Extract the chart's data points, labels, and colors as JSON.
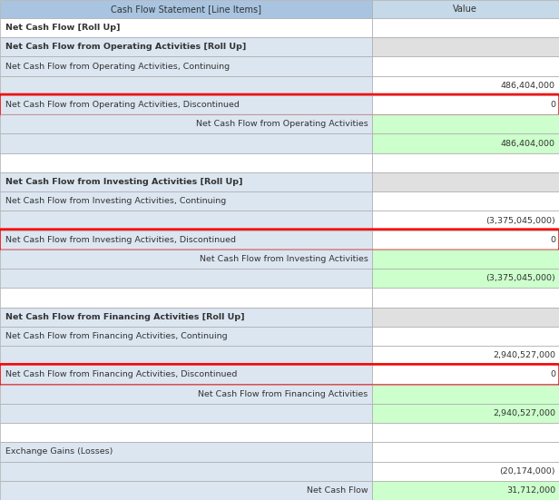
{
  "header": [
    "Cash Flow Statement [Line Items]",
    "Value"
  ],
  "rows": [
    {
      "label": "Net Cash Flow [Roll Up]",
      "value": "",
      "style": "bold",
      "right_label": false,
      "row_bg": "white",
      "value_bg": "white",
      "highlight": false
    },
    {
      "label": "Net Cash Flow from Operating Activities [Roll Up]",
      "value": "",
      "style": "bold",
      "right_label": false,
      "row_bg": "light_blue",
      "value_bg": "light_gray",
      "highlight": false
    },
    {
      "label": "Net Cash Flow from Operating Activities, Continuing",
      "value": "",
      "style": "normal",
      "right_label": false,
      "row_bg": "light_blue",
      "value_bg": "white",
      "highlight": false
    },
    {
      "label": "",
      "value": "486,404,000",
      "style": "normal",
      "right_label": false,
      "row_bg": "light_blue",
      "value_bg": "white",
      "highlight": false
    },
    {
      "label": "Net Cash Flow from Operating Activities, Discontinued",
      "value": "0",
      "style": "normal",
      "right_label": false,
      "row_bg": "light_blue",
      "value_bg": "white",
      "highlight": true
    },
    {
      "label": "Net Cash Flow from Operating Activities",
      "value": "",
      "style": "normal",
      "right_label": true,
      "row_bg": "light_blue",
      "value_bg": "green",
      "highlight": false
    },
    {
      "label": "",
      "value": "486,404,000",
      "style": "normal",
      "right_label": false,
      "row_bg": "light_blue",
      "value_bg": "green",
      "highlight": false
    },
    {
      "label": "",
      "value": "",
      "style": "normal",
      "right_label": false,
      "row_bg": "white",
      "value_bg": "white",
      "highlight": false
    },
    {
      "label": "Net Cash Flow from Investing Activities [Roll Up]",
      "value": "",
      "style": "bold",
      "right_label": false,
      "row_bg": "light_blue",
      "value_bg": "light_gray",
      "highlight": false
    },
    {
      "label": "Net Cash Flow from Investing Activities, Continuing",
      "value": "",
      "style": "normal",
      "right_label": false,
      "row_bg": "light_blue",
      "value_bg": "white",
      "highlight": false
    },
    {
      "label": "",
      "value": "(3,375,045,000)",
      "style": "normal",
      "right_label": false,
      "row_bg": "light_blue",
      "value_bg": "white",
      "highlight": false
    },
    {
      "label": "Net Cash Flow from Investing Activities, Discontinued",
      "value": "0",
      "style": "normal",
      "right_label": false,
      "row_bg": "light_blue",
      "value_bg": "white",
      "highlight": true
    },
    {
      "label": "Net Cash Flow from Investing Activities",
      "value": "",
      "style": "normal",
      "right_label": true,
      "row_bg": "light_blue",
      "value_bg": "green",
      "highlight": false
    },
    {
      "label": "",
      "value": "(3,375,045,000)",
      "style": "normal",
      "right_label": false,
      "row_bg": "light_blue",
      "value_bg": "green",
      "highlight": false
    },
    {
      "label": "",
      "value": "",
      "style": "normal",
      "right_label": false,
      "row_bg": "white",
      "value_bg": "white",
      "highlight": false
    },
    {
      "label": "Net Cash Flow from Financing Activities [Roll Up]",
      "value": "",
      "style": "bold",
      "right_label": false,
      "row_bg": "light_blue",
      "value_bg": "light_gray",
      "highlight": false
    },
    {
      "label": "Net Cash Flow from Financing Activities, Continuing",
      "value": "",
      "style": "normal",
      "right_label": false,
      "row_bg": "light_blue",
      "value_bg": "white",
      "highlight": false
    },
    {
      "label": "",
      "value": "2,940,527,000",
      "style": "normal",
      "right_label": false,
      "row_bg": "light_blue",
      "value_bg": "white",
      "highlight": false
    },
    {
      "label": "Net Cash Flow from Financing Activities, Discontinued",
      "value": "0",
      "style": "normal",
      "right_label": false,
      "row_bg": "light_blue",
      "value_bg": "white",
      "highlight": true
    },
    {
      "label": "Net Cash Flow from Financing Activities",
      "value": "",
      "style": "normal",
      "right_label": true,
      "row_bg": "light_blue",
      "value_bg": "green",
      "highlight": false
    },
    {
      "label": "",
      "value": "2,940,527,000",
      "style": "normal",
      "right_label": false,
      "row_bg": "light_blue",
      "value_bg": "green",
      "highlight": false
    },
    {
      "label": "",
      "value": "",
      "style": "normal",
      "right_label": false,
      "row_bg": "white",
      "value_bg": "white",
      "highlight": false
    },
    {
      "label": "Exchange Gains (Losses)",
      "value": "",
      "style": "normal",
      "right_label": false,
      "row_bg": "light_blue",
      "value_bg": "white",
      "highlight": false
    },
    {
      "label": "",
      "value": "(20,174,000)",
      "style": "normal",
      "right_label": false,
      "row_bg": "light_blue",
      "value_bg": "white",
      "highlight": false
    },
    {
      "label": "Net Cash Flow",
      "value": "31,712,000",
      "style": "normal",
      "right_label": true,
      "row_bg": "light_blue",
      "value_bg": "green",
      "highlight": false
    }
  ],
  "header_bg": "#A8C4E0",
  "header_value_bg": "#C5D9E8",
  "light_blue": "#DCE6F1",
  "light_gray": "#E0E0E0",
  "green": "#CCFFCC",
  "white": "#FFFFFF",
  "highlight_color": "#FF0000",
  "col_split": 0.665,
  "fig_w": 6.16,
  "fig_h": 5.51,
  "dpi": 100
}
